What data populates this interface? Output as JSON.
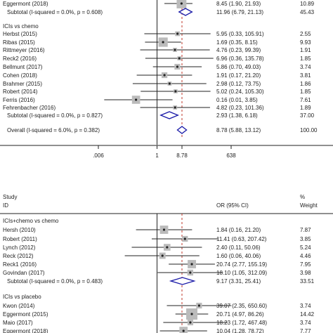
{
  "chart_data": [
    {
      "type": "forest",
      "scale": "log",
      "reference_line": 1,
      "pooled_line": 8.78,
      "axis_ticks": [
        ".006",
        "1",
        "8.78",
        "638"
      ],
      "axis_tick_values": [
        0.006,
        1,
        8.78,
        638
      ],
      "xlim": [
        0.006,
        638
      ],
      "groups": [
        {
          "label": "",
          "rows": [
            {
              "study": "Eggermont (2018)",
              "or": 8.45,
              "lo": 1.9,
              "hi": 21.93,
              "text": "8.45 (1.90, 21.93)",
              "weight": "10.89"
            }
          ],
          "subtotal": {
            "label": "Subtotal  (I-squared = 0.0%, p = 0.608)",
            "or": 11.96,
            "lo": 6.79,
            "hi": 21.13,
            "text": "11.96 (6.79, 21.13)",
            "weight": "45.43"
          }
        },
        {
          "label": "ICIs vs chemo",
          "rows": [
            {
              "study": "Herbst (2015)",
              "or": 5.95,
              "lo": 0.33,
              "hi": 105.91,
              "text": "5.95 (0.33, 105.91)",
              "weight": "2.55"
            },
            {
              "study": "Ribas (2015)",
              "or": 1.69,
              "lo": 0.35,
              "hi": 8.15,
              "text": "1.69 (0.35, 8.15)",
              "weight": "9.93"
            },
            {
              "study": "Rittmeyer (2016)",
              "or": 4.76,
              "lo": 0.23,
              "hi": 99.39,
              "text": "4.76 (0.23, 99.39)",
              "weight": "1.91"
            },
            {
              "study": "Reck2 (2016)",
              "or": 6.96,
              "lo": 0.36,
              "hi": 135.78,
              "text": "6.96 (0.36, 135.78)",
              "weight": "1.85"
            },
            {
              "study": "Bellmunt (2017)",
              "or": 5.86,
              "lo": 0.7,
              "hi": 49.03,
              "text": "5.86 (0.70, 49.03)",
              "weight": "3.74"
            },
            {
              "study": "Cohen (2018)",
              "or": 1.91,
              "lo": 0.17,
              "hi": 21.2,
              "text": "1.91 (0.17, 21.20)",
              "weight": "3.81"
            },
            {
              "study": "Brahmer (2015)",
              "or": 2.98,
              "lo": 0.12,
              "hi": 73.75,
              "text": "2.98 (0.12, 73.75)",
              "weight": "1.86"
            },
            {
              "study": "Robert (2014)",
              "or": 5.02,
              "lo": 0.24,
              "hi": 105.3,
              "text": "5.02 (0.24, 105.30)",
              "weight": "1.85"
            },
            {
              "study": "Ferris (2016)",
              "or": 0.16,
              "lo": 0.01,
              "hi": 3.85,
              "text": "0.16 (0.01, 3.85)",
              "weight": "7.61"
            },
            {
              "study": "Fehrenbacher (2016)",
              "or": 4.82,
              "lo": 0.23,
              "hi": 101.36,
              "text": "4.82 (0.23, 101.36)",
              "weight": "1.89"
            }
          ],
          "subtotal": {
            "label": "Subtotal  (I-squared = 0.0%, p = 0.827)",
            "or": 2.93,
            "lo": 1.38,
            "hi": 6.18,
            "text": "2.93 (1.38, 6.18)",
            "weight": "37.00"
          }
        }
      ],
      "overall": {
        "label": "Overall  (I-squared = 6.0%, p = 0.382)",
        "or": 8.78,
        "lo": 5.88,
        "hi": 13.12,
        "text": "8.78 (5.88, 13.12)",
        "weight": "100.00"
      }
    },
    {
      "type": "forest",
      "scale": "log",
      "reference_line": 1,
      "pooled_line": 8.78,
      "xlim": [
        0.006,
        638
      ],
      "header": {
        "col1_a": "Study",
        "col1_b": "ID",
        "col2": "OR (95% CI)",
        "col3_a": "%",
        "col3_b": "Weight"
      },
      "groups": [
        {
          "label": "ICIs+chemo vs chemo",
          "rows": [
            {
              "study": "Hersh (2010)",
              "or": 1.84,
              "lo": 0.16,
              "hi": 21.2,
              "text": "1.84 (0.16, 21.20)",
              "weight": "7.87"
            },
            {
              "study": "Robert (2011)",
              "or": 11.41,
              "lo": 0.63,
              "hi": 207.42,
              "text": "11.41 (0.63, 207.42)",
              "weight": "3.85"
            },
            {
              "study": "Lynch (2012)",
              "or": 2.4,
              "lo": 0.11,
              "hi": 50.06,
              "text": "2.40 (0.11, 50.06)",
              "weight": "5.24"
            },
            {
              "study": "Reck (2012)",
              "or": 1.6,
              "lo": 0.06,
              "hi": 40.06,
              "text": "1.60 (0.06, 40.06)",
              "weight": "4.46"
            },
            {
              "study": "Reck1 (2016)",
              "or": 20.74,
              "lo": 2.77,
              "hi": 155.19,
              "text": "20.74 (2.77, 155.19)",
              "weight": "7.95"
            },
            {
              "study": "Govindan (2017)",
              "or": 18.1,
              "lo": 1.05,
              "hi": 312.09,
              "text": "18.10 (1.05, 312.09)",
              "weight": "3.98"
            }
          ],
          "subtotal": {
            "label": "Subtotal  (I-squared = 0.0%, p = 0.483)",
            "or": 9.17,
            "lo": 3.31,
            "hi": 25.41,
            "text": "9.17 (3.31, 25.41)",
            "weight": "33.51"
          }
        },
        {
          "label": "ICIs vs placebo",
          "rows": [
            {
              "study": "Kwon (2014)",
              "or": 39.07,
              "lo": 2.35,
              "hi": 650.6,
              "text": "39.07 (2.35, 650.60)",
              "weight": "3.74"
            },
            {
              "study": "Eggermont (2015)",
              "or": 20.71,
              "lo": 4.97,
              "hi": 86.26,
              "text": "20.71 (4.97, 86.26)",
              "weight": "14.42"
            },
            {
              "study": "Maio (2017)",
              "or": 18.23,
              "lo": 1.72,
              "hi": 467.48,
              "text": "18.23 (1.72, 467.48)",
              "weight": "3.74"
            },
            {
              "study": "Eggermont (2018)",
              "or": 10.04,
              "lo": 1.28,
              "hi": 78.72,
              "text": "10.04 (1.28, 78.72)",
              "weight": "7.77"
            }
          ]
        }
      ]
    }
  ]
}
